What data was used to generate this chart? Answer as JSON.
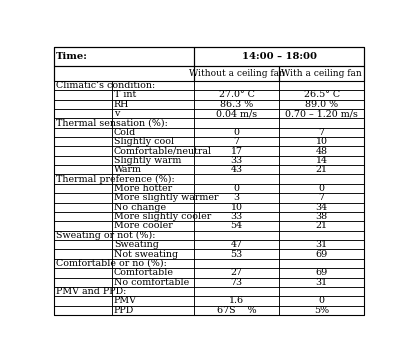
{
  "col_split": 0.465,
  "rows": [
    {
      "type": "header1",
      "cells": [
        {
          "text": "Time:",
          "bold": true,
          "span": [
            0,
            1
          ],
          "ha": "left"
        },
        {
          "text": "14:00 – 18:00",
          "bold": true,
          "span": [
            2,
            3
          ],
          "ha": "center"
        }
      ]
    },
    {
      "type": "header2",
      "cells": [
        {
          "text": "",
          "span": [
            0,
            1
          ],
          "ha": "left"
        },
        {
          "text": "Without a ceiling fan",
          "span": [
            2,
            2
          ],
          "ha": "center"
        },
        {
          "text": "With a ceiling fan",
          "span": [
            3,
            3
          ],
          "ha": "center"
        }
      ]
    },
    {
      "type": "section",
      "label": "Climatic’s condition:",
      "c2": "",
      "c3": ""
    },
    {
      "type": "data",
      "label": "T int",
      "c2": "27.0° C",
      "c3": "26.5° C"
    },
    {
      "type": "data",
      "label": "RH",
      "c2": "86.3 %",
      "c3": "89.0 %"
    },
    {
      "type": "data",
      "label": "v",
      "c2": "0.04 m/s",
      "c3": "0.70 – 1.20 m/s"
    },
    {
      "type": "section",
      "label": "Thermal sensation (%):",
      "c2": "",
      "c3": ""
    },
    {
      "type": "data",
      "label": "Cold",
      "c2": "0",
      "c3": "7"
    },
    {
      "type": "data",
      "label": "Slightly cool",
      "c2": "7",
      "c3": "10"
    },
    {
      "type": "data",
      "label": "Comfortable/neutral",
      "c2": "17",
      "c3": "48"
    },
    {
      "type": "data",
      "label": "Slightly warm",
      "c2": "33",
      "c3": "14"
    },
    {
      "type": "data",
      "label": "Warm",
      "c2": "43",
      "c3": "21"
    },
    {
      "type": "section",
      "label": "Thermal preference (%):",
      "c2": "",
      "c3": ""
    },
    {
      "type": "data",
      "label": "More hotter",
      "c2": "0",
      "c3": "0"
    },
    {
      "type": "data",
      "label": "More slightly warmer",
      "c2": "3",
      "c3": "7"
    },
    {
      "type": "data",
      "label": "No change",
      "c2": "10",
      "c3": "34"
    },
    {
      "type": "data",
      "label": "More slightly cooler",
      "c2": "33",
      "c3": "38"
    },
    {
      "type": "data",
      "label": "More cooler",
      "c2": "54",
      "c3": "21"
    },
    {
      "type": "section",
      "label": "Sweating or not (%):",
      "c2": "",
      "c3": ""
    },
    {
      "type": "data",
      "label": "Sweating",
      "c2": "47",
      "c3": "31"
    },
    {
      "type": "data",
      "label": "Not sweating",
      "c2": "53",
      "c3": "69"
    },
    {
      "type": "section",
      "label": "Comfortable or no (%):",
      "c2": "",
      "c3": ""
    },
    {
      "type": "data",
      "label": "Comfortable",
      "c2": "27",
      "c3": "69"
    },
    {
      "type": "data",
      "label": "No comfortable",
      "c2": "73",
      "c3": "31"
    },
    {
      "type": "section",
      "label": "PMV and PPD:",
      "c2": "",
      "c3": ""
    },
    {
      "type": "data",
      "label": "PMV",
      "c2": "1.6",
      "c3": "0"
    },
    {
      "type": "data",
      "label": "PPD",
      "c2": "67S    %",
      "c3": "5%"
    }
  ],
  "bg_color": "#ffffff",
  "border_color": "#000000",
  "font_size": 6.8,
  "font_size_header": 7.2
}
